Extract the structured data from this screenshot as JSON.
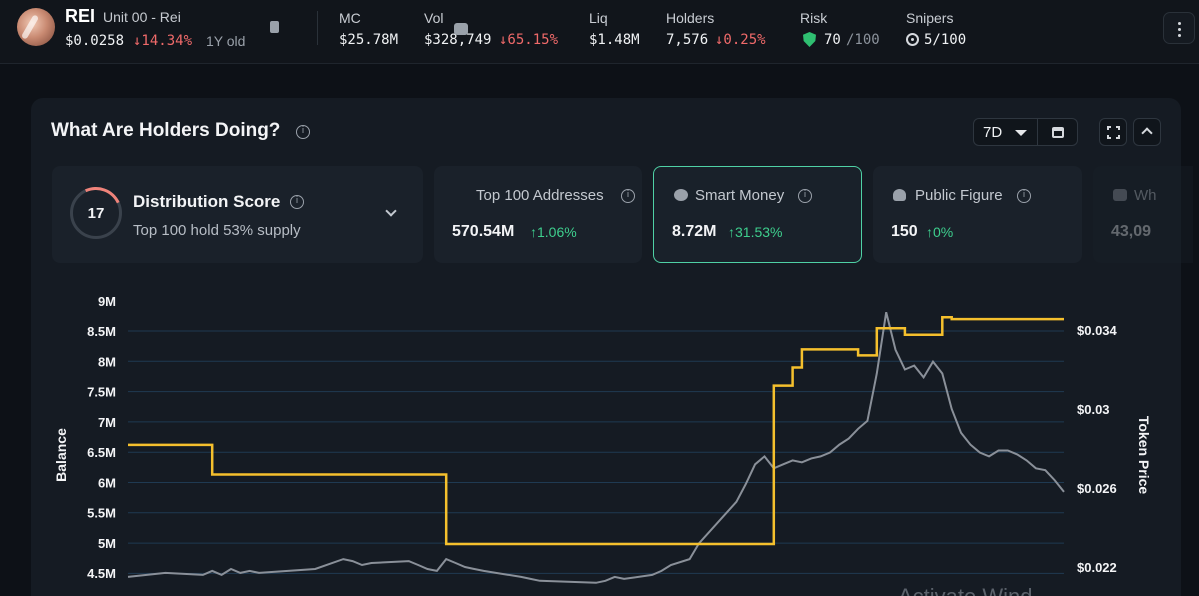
{
  "token": {
    "symbol": "REI",
    "name": "Unit 00 - Rei",
    "price": "$0.0258",
    "change": "↓14.34%",
    "age": "1Y old"
  },
  "stats": {
    "mc": {
      "label": "MC",
      "value": "$25.78M"
    },
    "vol": {
      "label": "Vol",
      "value": "$328,749",
      "change": "↓65.15%"
    },
    "liq": {
      "label": "Liq",
      "value": "$1.48M"
    },
    "holders": {
      "label": "Holders",
      "value": "7,576",
      "change": "↓0.25%"
    },
    "risk": {
      "label": "Risk",
      "value": "70",
      "max": "/100",
      "icon": "shield-icon"
    },
    "snipers": {
      "label": "Snipers",
      "value": "5/100",
      "icon": "target-icon"
    }
  },
  "panel": {
    "title": "What Are Holders Doing?",
    "range": "7D"
  },
  "cards": {
    "distribution": {
      "score": "17",
      "title": "Distribution Score",
      "subtitle": "Top 100 hold 53% supply"
    },
    "top100": {
      "label": "Top 100 Addresses",
      "value": "570.54M",
      "change": "↑1.06%"
    },
    "smart_money": {
      "label": "Smart Money",
      "value": "8.72M",
      "change": "↑31.53%"
    },
    "public_figure": {
      "label": "Public Figure",
      "value": "150",
      "change": "↑0%"
    },
    "whale": {
      "label": "Wh",
      "value": "43,09"
    }
  },
  "watermark": "Activate Wind",
  "chart_data": {
    "type": "line",
    "ylabel": "Balance",
    "y2label": "Token Price",
    "y_ticks": [
      "9M",
      "8.5M",
      "8M",
      "7.5M",
      "7M",
      "6.5M",
      "6M",
      "5.5M",
      "5M",
      "4.5M"
    ],
    "y2_ticks": [
      "$0.034",
      "$0.03",
      "$0.026",
      "$0.022"
    ],
    "ylim": [
      4.5,
      9
    ],
    "y2lim": [
      0.022,
      0.034
    ],
    "x": [
      0,
      4,
      8,
      9,
      10,
      11,
      12,
      13,
      14,
      20,
      23,
      24,
      25,
      26,
      30,
      31,
      32,
      33,
      34,
      35,
      36,
      37,
      38,
      42,
      43,
      44,
      50,
      51,
      52,
      53,
      56,
      57,
      58,
      60,
      61,
      65,
      66,
      67,
      68,
      69,
      70,
      71,
      72,
      73,
      74,
      75,
      76,
      77,
      78,
      79,
      80,
      81,
      82,
      83,
      84,
      85,
      86,
      87,
      88,
      89,
      90,
      91,
      92,
      93,
      94,
      95,
      96,
      97,
      98,
      99,
      100
    ],
    "series": [
      {
        "name": "Balance",
        "color": "#f5c02d",
        "values": [
          6.62,
          6.62,
          6.62,
          6.13,
          6.13,
          6.13,
          6.13,
          6.13,
          6.13,
          6.13,
          6.13,
          6.13,
          6.13,
          6.13,
          6.13,
          6.13,
          6.13,
          6.13,
          4.98,
          4.98,
          4.98,
          4.98,
          4.98,
          4.98,
          4.98,
          4.98,
          4.98,
          4.98,
          4.98,
          4.98,
          4.98,
          4.98,
          4.98,
          4.98,
          4.98,
          4.98,
          4.98,
          4.98,
          4.98,
          7.6,
          7.6,
          7.9,
          8.2,
          8.2,
          8.2,
          8.2,
          8.2,
          8.2,
          8.1,
          8.1,
          8.55,
          8.55,
          8.55,
          8.44,
          8.44,
          8.44,
          8.44,
          8.73,
          8.7,
          8.7,
          8.7,
          8.7,
          8.7,
          8.7,
          8.7,
          8.7,
          8.7,
          8.7,
          8.7,
          8.7,
          8.7
        ]
      },
      {
        "name": "Token Price",
        "color": "#8a9099",
        "values": [
          0.0215,
          0.0217,
          0.0216,
          0.0218,
          0.0216,
          0.0219,
          0.0217,
          0.0218,
          0.0217,
          0.0219,
          0.0224,
          0.0223,
          0.0221,
          0.0222,
          0.0223,
          0.0221,
          0.0219,
          0.0218,
          0.0224,
          0.0222,
          0.022,
          0.0219,
          0.0218,
          0.0215,
          0.0214,
          0.0213,
          0.0212,
          0.0213,
          0.0215,
          0.0214,
          0.0216,
          0.0218,
          0.0221,
          0.0224,
          0.0232,
          0.0253,
          0.0262,
          0.0272,
          0.0276,
          0.027,
          0.0272,
          0.0274,
          0.0273,
          0.0275,
          0.0276,
          0.0278,
          0.0282,
          0.0285,
          0.029,
          0.0294,
          0.0318,
          0.0349,
          0.033,
          0.032,
          0.0322,
          0.0316,
          0.0324,
          0.0318,
          0.03,
          0.0288,
          0.0282,
          0.0278,
          0.0276,
          0.0279,
          0.0279,
          0.0277,
          0.0274,
          0.027,
          0.0269,
          0.0264,
          0.0258
        ]
      }
    ],
    "grid": true
  }
}
